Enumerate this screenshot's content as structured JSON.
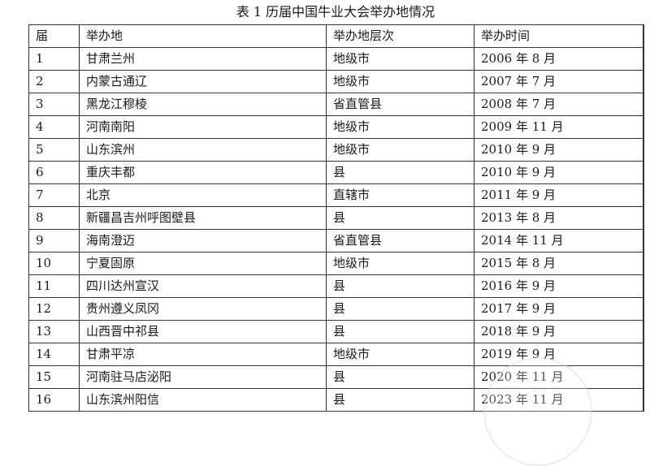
{
  "title": "表 1  历届中国牛业大会举办地情况",
  "headers": [
    "届",
    "举办地",
    "举办地层次",
    "举办时间"
  ],
  "rows": [
    [
      "1",
      "甘肃兰州",
      "地级市",
      "2006 年 8 月"
    ],
    [
      "2",
      "内蒙古通辽",
      "地级市",
      "2007 年 7 月"
    ],
    [
      "3",
      "黑龙江穆棱",
      "省直管县",
      "2008 年 7 月"
    ],
    [
      "4",
      "河南南阳",
      "地级市",
      "2009 年 11 月"
    ],
    [
      "5",
      "山东滨州",
      "地级市",
      "2010 年 9 月"
    ],
    [
      "6",
      "重庆丰都",
      "县",
      "2010 年 9 月"
    ],
    [
      "7",
      "北京",
      "直辖市",
      "2011 年 9 月"
    ],
    [
      "8",
      "新疆昌吉州呼图壁县",
      "县",
      "2013 年 8 月"
    ],
    [
      "9",
      "海南澄迈",
      "省直管县",
      "2014 年 11 月"
    ],
    [
      "10",
      "宁夏固原",
      "地级市",
      "2015 年 8 月"
    ],
    [
      "11",
      "四川达州宣汉",
      "县",
      "2016 年 9 月"
    ],
    [
      "12",
      "贵州遵义凤冈",
      "县",
      "2017 年 9 月"
    ],
    [
      "13",
      "山西晋中祁县",
      "县",
      "2018 年 9 月"
    ],
    [
      "14",
      "甘肃平凉",
      "地级市",
      "2019 年 9 月"
    ],
    [
      "15",
      "河南驻马店泌阳",
      "县",
      "2020 年 11 月"
    ],
    [
      "16",
      "山东滨州阳信",
      "县",
      "2023 年 11 月"
    ]
  ]
}
